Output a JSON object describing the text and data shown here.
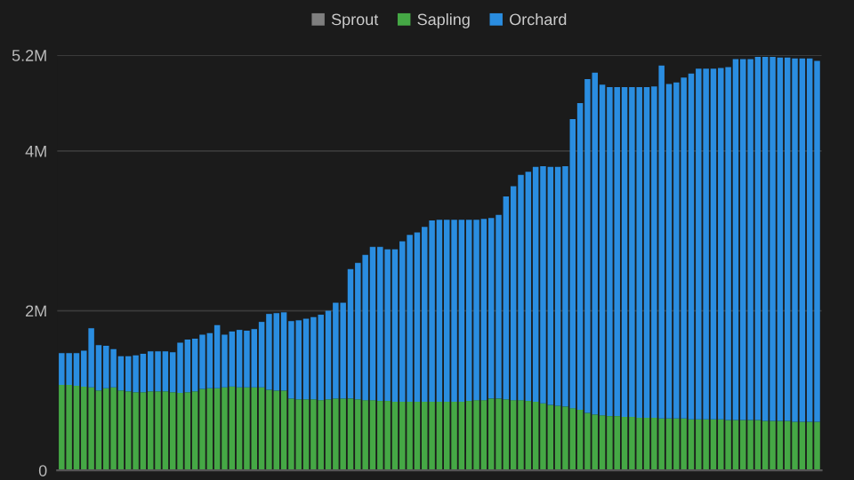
{
  "chart_data": {
    "type": "bar",
    "stacked": true,
    "categories": [
      null,
      null,
      null,
      null,
      null,
      null,
      null,
      null,
      null,
      null,
      null,
      null,
      null,
      null,
      null,
      null,
      null,
      null,
      null,
      null,
      null,
      null,
      null,
      null,
      null,
      null,
      null,
      null,
      null,
      null,
      null,
      null,
      null,
      null,
      null,
      null,
      null,
      null,
      null,
      null,
      null,
      null,
      null,
      null,
      null,
      null,
      null,
      null,
      null,
      null,
      null,
      null,
      null,
      null,
      null,
      null,
      null,
      null,
      null,
      null,
      null,
      null,
      null,
      null,
      null,
      null,
      null,
      null,
      null,
      null,
      null,
      null,
      null,
      null,
      null,
      null,
      null,
      null,
      null,
      null,
      null,
      null,
      null,
      null,
      null,
      null,
      null,
      null,
      null,
      null,
      null,
      null,
      null,
      null,
      null,
      null,
      null,
      null,
      null,
      null,
      null,
      null,
      null
    ],
    "series": [
      {
        "name": "Sprout",
        "color": "#7f7f7f",
        "values": [
          0,
          0,
          0,
          0,
          0,
          0,
          0,
          0,
          0,
          0,
          0,
          0,
          0,
          0,
          0,
          0,
          0,
          0,
          0,
          0,
          0,
          0,
          0,
          0,
          0,
          0,
          0,
          0,
          0,
          0,
          0,
          0,
          0,
          0,
          0,
          0,
          0,
          0,
          0,
          0,
          0,
          0,
          0,
          0,
          0,
          0,
          0,
          0,
          0,
          0,
          0,
          0,
          0,
          0,
          0,
          0,
          0,
          0,
          0,
          0,
          0,
          0,
          0,
          0,
          0,
          0,
          0,
          0,
          0,
          0,
          0,
          0,
          0,
          0,
          0,
          0,
          0,
          0,
          0,
          0,
          0,
          0,
          0,
          0,
          0,
          0,
          0,
          0,
          0,
          0,
          0,
          0,
          0,
          0,
          0,
          0,
          0,
          0,
          0,
          0,
          0,
          0,
          0
        ]
      },
      {
        "name": "Sapling",
        "color": "#45a845",
        "values": [
          1.07,
          1.07,
          1.06,
          1.05,
          1.04,
          1.0,
          1.03,
          1.04,
          1.0,
          0.99,
          0.98,
          0.98,
          0.99,
          0.99,
          0.99,
          0.98,
          0.97,
          0.98,
          0.99,
          1.02,
          1.03,
          1.03,
          1.04,
          1.05,
          1.04,
          1.04,
          1.04,
          1.04,
          1.01,
          1.0,
          1.0,
          0.9,
          0.89,
          0.89,
          0.89,
          0.88,
          0.89,
          0.9,
          0.9,
          0.9,
          0.89,
          0.88,
          0.88,
          0.87,
          0.87,
          0.86,
          0.86,
          0.86,
          0.86,
          0.86,
          0.86,
          0.86,
          0.86,
          0.86,
          0.86,
          0.87,
          0.88,
          0.88,
          0.9,
          0.9,
          0.89,
          0.88,
          0.88,
          0.87,
          0.86,
          0.84,
          0.82,
          0.81,
          0.8,
          0.78,
          0.76,
          0.72,
          0.7,
          0.69,
          0.68,
          0.68,
          0.67,
          0.67,
          0.66,
          0.66,
          0.66,
          0.65,
          0.65,
          0.65,
          0.65,
          0.64,
          0.64,
          0.64,
          0.64,
          0.64,
          0.63,
          0.63,
          0.63,
          0.63,
          0.63,
          0.62,
          0.62,
          0.62,
          0.62,
          0.61,
          0.61,
          0.61,
          0.61
        ]
      },
      {
        "name": "Orchard",
        "color": "#2a8de0",
        "values": [
          0.4,
          0.4,
          0.41,
          0.45,
          0.74,
          0.57,
          0.53,
          0.48,
          0.43,
          0.44,
          0.46,
          0.48,
          0.5,
          0.5,
          0.5,
          0.5,
          0.63,
          0.66,
          0.66,
          0.68,
          0.69,
          0.79,
          0.66,
          0.69,
          0.72,
          0.71,
          0.73,
          0.82,
          0.95,
          0.97,
          0.98,
          0.97,
          0.99,
          1.01,
          1.03,
          1.07,
          1.11,
          1.2,
          1.2,
          1.62,
          1.71,
          1.82,
          1.92,
          1.93,
          1.9,
          1.91,
          2.01,
          2.09,
          2.12,
          2.19,
          2.27,
          2.28,
          2.28,
          2.28,
          2.28,
          2.27,
          2.26,
          2.27,
          2.26,
          2.3,
          2.54,
          2.68,
          2.82,
          2.87,
          2.94,
          2.97,
          2.98,
          2.99,
          3.01,
          3.62,
          3.84,
          4.18,
          4.28,
          4.14,
          4.12,
          4.12,
          4.13,
          4.13,
          4.14,
          4.14,
          4.15,
          4.42,
          4.19,
          4.21,
          4.27,
          4.33,
          4.39,
          4.39,
          4.39,
          4.4,
          4.42,
          4.52,
          4.52,
          4.52,
          4.55,
          4.56,
          4.56,
          4.55,
          4.55,
          4.55,
          4.55,
          4.55,
          4.52
        ]
      }
    ],
    "ylim": [
      0,
      5.2
    ],
    "yticks": [
      {
        "value": 0,
        "label": "0"
      },
      {
        "value": 2,
        "label": "2M"
      },
      {
        "value": 4,
        "label": "4M"
      },
      {
        "value": 5.2,
        "label": "5.2M"
      }
    ],
    "grid": "y",
    "legend": "top"
  }
}
